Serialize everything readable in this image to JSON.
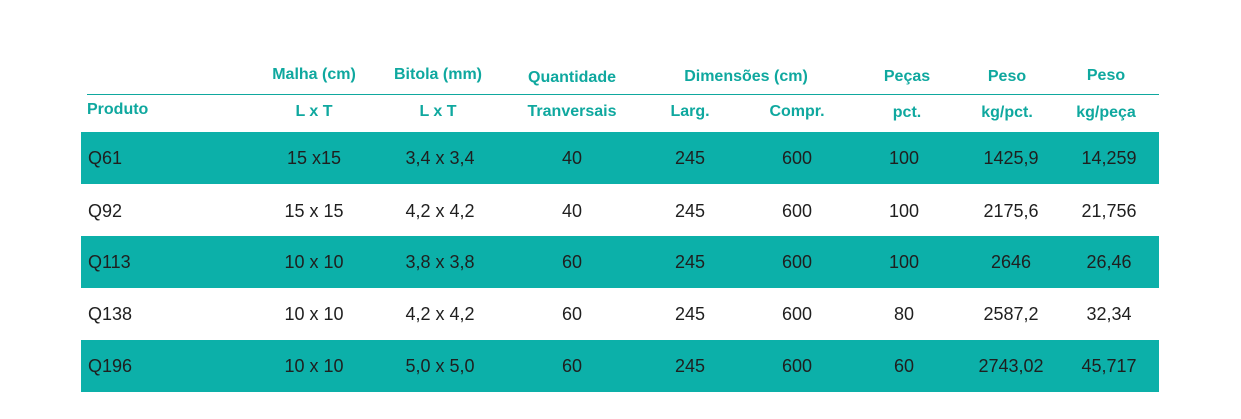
{
  "header": {
    "top": {
      "malha": "Malha (cm)",
      "bitola": "Bitola (mm)",
      "quantidade": "Quantidade",
      "dimensoes": "Dimensões (cm)",
      "pecas": "Peças",
      "peso1": "Peso",
      "peso2": "Peso"
    },
    "sub": {
      "produto": "Produto",
      "malha": "L x T",
      "bitola": "L x T",
      "quantidade": "Tranversais",
      "larg": "Larg.",
      "compr": "Compr.",
      "pecas": "pct.",
      "peso1": "kg/pct.",
      "peso2": "kg/peça"
    }
  },
  "rows": [
    {
      "produto": "Q61",
      "malha": "15 x15",
      "bitola": "3,4 x 3,4",
      "quantidade": "40",
      "larg": "245",
      "compr": "600",
      "pecas": "100",
      "peso_pct": "1425,9",
      "peso_peca": "14,259"
    },
    {
      "produto": "Q92",
      "malha": "15 x 15",
      "bitola": "4,2 x 4,2",
      "quantidade": "40",
      "larg": "245",
      "compr": "600",
      "pecas": "100",
      "peso_pct": "2175,6",
      "peso_peca": "21,756"
    },
    {
      "produto": "Q113",
      "malha": "10 x 10",
      "bitola": "3,8 x 3,8",
      "quantidade": "60",
      "larg": "245",
      "compr": "600",
      "pecas": "100",
      "peso_pct": "2646",
      "peso_peca": "26,46"
    },
    {
      "produto": "Q138",
      "malha": "10 x 10",
      "bitola": "4,2 x 4,2",
      "quantidade": "60",
      "larg": "245",
      "compr": "600",
      "pecas": "80",
      "peso_pct": "2587,2",
      "peso_peca": "32,34"
    },
    {
      "produto": "Q196",
      "malha": "10 x 10",
      "bitola": "5,0 x 5,0",
      "quantidade": "60",
      "larg": "245",
      "compr": "600",
      "pecas": "60",
      "peso_pct": "2743,02",
      "peso_peca": "45,717"
    }
  ],
  "colors": {
    "accent": "#0fa89f",
    "row_fill": "#0cb0a9",
    "text": "#1f1f1f"
  }
}
